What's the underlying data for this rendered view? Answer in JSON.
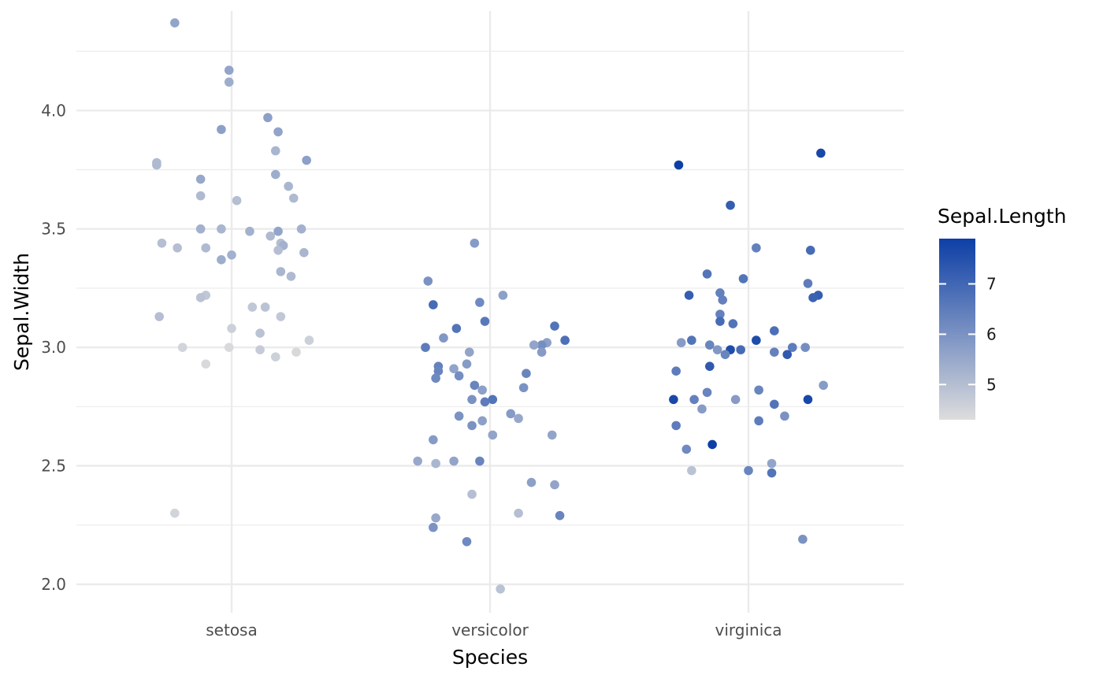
{
  "chart_data": {
    "type": "scatter",
    "title": "",
    "xlabel": "Species",
    "ylabel": "Sepal.Width",
    "categories": [
      "setosa",
      "versicolor",
      "virginica"
    ],
    "ylim": [
      1.88,
      4.42
    ],
    "y_ticks": [
      "2.0",
      "2.5",
      "3.0",
      "3.5",
      "4.0"
    ],
    "grid": true,
    "color_scale": {
      "title": "Sepal.Length",
      "min": 4.3,
      "max": 7.9,
      "low_color": "#dddddd",
      "high_color": "#0d3fa6",
      "ticks": [
        "5",
        "6",
        "7"
      ],
      "legend_position": "right"
    },
    "series": [
      {
        "name": "setosa",
        "points": [
          {
            "jitter": -0.22,
            "y": 4.37,
            "c": 5.6
          },
          {
            "jitter": -0.01,
            "y": 4.17,
            "c": 5.6
          },
          {
            "jitter": -0.01,
            "y": 4.12,
            "c": 5.4
          },
          {
            "jitter": 0.14,
            "y": 3.97,
            "c": 5.7
          },
          {
            "jitter": -0.04,
            "y": 3.92,
            "c": 5.7
          },
          {
            "jitter": 0.18,
            "y": 3.91,
            "c": 5.6
          },
          {
            "jitter": 0.17,
            "y": 3.83,
            "c": 5.2
          },
          {
            "jitter": 0.29,
            "y": 3.79,
            "c": 5.7
          },
          {
            "jitter": -0.29,
            "y": 3.78,
            "c": 5.1
          },
          {
            "jitter": -0.29,
            "y": 3.77,
            "c": 5.1
          },
          {
            "jitter": 0.17,
            "y": 3.73,
            "c": 5.4
          },
          {
            "jitter": -0.12,
            "y": 3.71,
            "c": 5.5
          },
          {
            "jitter": 0.22,
            "y": 3.68,
            "c": 5.2
          },
          {
            "jitter": -0.12,
            "y": 3.64,
            "c": 5.1
          },
          {
            "jitter": 0.24,
            "y": 3.63,
            "c": 5.1
          },
          {
            "jitter": 0.02,
            "y": 3.62,
            "c": 5.0
          },
          {
            "jitter": -0.12,
            "y": 3.5,
            "c": 5.3
          },
          {
            "jitter": -0.04,
            "y": 3.5,
            "c": 5.2
          },
          {
            "jitter": 0.27,
            "y": 3.5,
            "c": 5.3
          },
          {
            "jitter": 0.18,
            "y": 3.49,
            "c": 5.6
          },
          {
            "jitter": 0.07,
            "y": 3.49,
            "c": 5.3
          },
          {
            "jitter": 0.15,
            "y": 3.47,
            "c": 5.1
          },
          {
            "jitter": -0.27,
            "y": 3.44,
            "c": 5.0
          },
          {
            "jitter": 0.19,
            "y": 3.44,
            "c": 5.0
          },
          {
            "jitter": 0.2,
            "y": 3.43,
            "c": 5.3
          },
          {
            "jitter": -0.21,
            "y": 3.42,
            "c": 5.0
          },
          {
            "jitter": -0.1,
            "y": 3.42,
            "c": 5.1
          },
          {
            "jitter": 0.18,
            "y": 3.41,
            "c": 5.0
          },
          {
            "jitter": 0.28,
            "y": 3.4,
            "c": 5.2
          },
          {
            "jitter": 0.0,
            "y": 3.39,
            "c": 5.3
          },
          {
            "jitter": -0.04,
            "y": 3.37,
            "c": 5.4
          },
          {
            "jitter": 0.19,
            "y": 3.32,
            "c": 5.2
          },
          {
            "jitter": 0.23,
            "y": 3.3,
            "c": 5.1
          },
          {
            "jitter": -0.1,
            "y": 3.22,
            "c": 4.8
          },
          {
            "jitter": -0.12,
            "y": 3.21,
            "c": 4.9
          },
          {
            "jitter": 0.08,
            "y": 3.17,
            "c": 4.8
          },
          {
            "jitter": 0.13,
            "y": 3.17,
            "c": 4.9
          },
          {
            "jitter": -0.28,
            "y": 3.13,
            "c": 5.0
          },
          {
            "jitter": 0.19,
            "y": 3.13,
            "c": 4.8
          },
          {
            "jitter": 0.0,
            "y": 3.08,
            "c": 4.6
          },
          {
            "jitter": 0.11,
            "y": 3.06,
            "c": 4.9
          },
          {
            "jitter": 0.3,
            "y": 3.03,
            "c": 4.6
          },
          {
            "jitter": -0.19,
            "y": 3.0,
            "c": 4.5
          },
          {
            "jitter": -0.01,
            "y": 3.0,
            "c": 4.4
          },
          {
            "jitter": 0.11,
            "y": 2.99,
            "c": 4.7
          },
          {
            "jitter": 0.25,
            "y": 2.98,
            "c": 4.4
          },
          {
            "jitter": 0.17,
            "y": 2.96,
            "c": 4.6
          },
          {
            "jitter": -0.1,
            "y": 2.93,
            "c": 4.4
          },
          {
            "jitter": -0.22,
            "y": 2.3,
            "c": 4.5
          }
        ]
      },
      {
        "name": "versicolor",
        "points": [
          {
            "jitter": -0.06,
            "y": 3.44,
            "c": 5.8
          },
          {
            "jitter": -0.24,
            "y": 3.28,
            "c": 6.0
          },
          {
            "jitter": 0.05,
            "y": 3.22,
            "c": 5.7
          },
          {
            "jitter": -0.04,
            "y": 3.19,
            "c": 6.2
          },
          {
            "jitter": -0.22,
            "y": 3.18,
            "c": 6.9
          },
          {
            "jitter": -0.02,
            "y": 3.11,
            "c": 6.6
          },
          {
            "jitter": 0.25,
            "y": 3.09,
            "c": 6.7
          },
          {
            "jitter": -0.13,
            "y": 3.08,
            "c": 6.7
          },
          {
            "jitter": -0.18,
            "y": 3.04,
            "c": 5.9
          },
          {
            "jitter": 0.29,
            "y": 3.03,
            "c": 6.8
          },
          {
            "jitter": 0.22,
            "y": 3.02,
            "c": 5.7
          },
          {
            "jitter": 0.2,
            "y": 3.01,
            "c": 6.1
          },
          {
            "jitter": 0.17,
            "y": 3.01,
            "c": 5.6
          },
          {
            "jitter": -0.25,
            "y": 3.0,
            "c": 6.5
          },
          {
            "jitter": -0.08,
            "y": 2.98,
            "c": 5.6
          },
          {
            "jitter": 0.2,
            "y": 2.98,
            "c": 5.8
          },
          {
            "jitter": -0.2,
            "y": 2.92,
            "c": 6.4
          },
          {
            "jitter": -0.09,
            "y": 2.93,
            "c": 5.8
          },
          {
            "jitter": -0.14,
            "y": 2.91,
            "c": 5.6
          },
          {
            "jitter": -0.2,
            "y": 2.9,
            "c": 6.3
          },
          {
            "jitter": 0.14,
            "y": 2.89,
            "c": 6.3
          },
          {
            "jitter": -0.12,
            "y": 2.88,
            "c": 6.1
          },
          {
            "jitter": -0.21,
            "y": 2.87,
            "c": 6.2
          },
          {
            "jitter": -0.06,
            "y": 2.84,
            "c": 6.3
          },
          {
            "jitter": 0.13,
            "y": 2.83,
            "c": 6.0
          },
          {
            "jitter": -0.03,
            "y": 2.82,
            "c": 5.7
          },
          {
            "jitter": -0.07,
            "y": 2.78,
            "c": 6.0
          },
          {
            "jitter": 0.01,
            "y": 2.78,
            "c": 6.7
          },
          {
            "jitter": -0.02,
            "y": 2.77,
            "c": 6.5
          },
          {
            "jitter": 0.08,
            "y": 2.72,
            "c": 5.8
          },
          {
            "jitter": -0.12,
            "y": 2.71,
            "c": 6.0
          },
          {
            "jitter": 0.11,
            "y": 2.7,
            "c": 5.5
          },
          {
            "jitter": -0.03,
            "y": 2.69,
            "c": 5.7
          },
          {
            "jitter": -0.07,
            "y": 2.67,
            "c": 6.0
          },
          {
            "jitter": 0.01,
            "y": 2.63,
            "c": 5.6
          },
          {
            "jitter": 0.24,
            "y": 2.63,
            "c": 5.6
          },
          {
            "jitter": -0.22,
            "y": 2.61,
            "c": 5.8
          },
          {
            "jitter": -0.28,
            "y": 2.52,
            "c": 5.5
          },
          {
            "jitter": -0.14,
            "y": 2.52,
            "c": 5.6
          },
          {
            "jitter": -0.04,
            "y": 2.52,
            "c": 6.3
          },
          {
            "jitter": -0.21,
            "y": 2.51,
            "c": 5.2
          },
          {
            "jitter": 0.16,
            "y": 2.43,
            "c": 5.7
          },
          {
            "jitter": 0.25,
            "y": 2.42,
            "c": 5.6
          },
          {
            "jitter": -0.07,
            "y": 2.38,
            "c": 5.0
          },
          {
            "jitter": 0.11,
            "y": 2.3,
            "c": 5.0
          },
          {
            "jitter": 0.27,
            "y": 2.29,
            "c": 6.3
          },
          {
            "jitter": -0.21,
            "y": 2.28,
            "c": 5.5
          },
          {
            "jitter": -0.22,
            "y": 2.24,
            "c": 6.0
          },
          {
            "jitter": -0.09,
            "y": 2.18,
            "c": 6.2
          },
          {
            "jitter": 0.04,
            "y": 1.98,
            "c": 4.9
          }
        ]
      },
      {
        "name": "virginica",
        "points": [
          {
            "jitter": 0.28,
            "y": 3.82,
            "c": 7.7
          },
          {
            "jitter": -0.27,
            "y": 3.77,
            "c": 7.9
          },
          {
            "jitter": -0.07,
            "y": 3.6,
            "c": 7.2
          },
          {
            "jitter": 0.03,
            "y": 3.42,
            "c": 6.4
          },
          {
            "jitter": 0.24,
            "y": 3.41,
            "c": 6.9
          },
          {
            "jitter": -0.16,
            "y": 3.31,
            "c": 6.7
          },
          {
            "jitter": -0.02,
            "y": 3.29,
            "c": 6.7
          },
          {
            "jitter": 0.23,
            "y": 3.27,
            "c": 6.5
          },
          {
            "jitter": -0.11,
            "y": 3.23,
            "c": 6.4
          },
          {
            "jitter": -0.23,
            "y": 3.22,
            "c": 7.2
          },
          {
            "jitter": 0.27,
            "y": 3.22,
            "c": 7.2
          },
          {
            "jitter": 0.25,
            "y": 3.21,
            "c": 7.1
          },
          {
            "jitter": -0.1,
            "y": 3.2,
            "c": 6.4
          },
          {
            "jitter": -0.11,
            "y": 3.14,
            "c": 6.4
          },
          {
            "jitter": -0.11,
            "y": 3.11,
            "c": 6.9
          },
          {
            "jitter": -0.06,
            "y": 3.1,
            "c": 6.7
          },
          {
            "jitter": 0.1,
            "y": 3.07,
            "c": 6.8
          },
          {
            "jitter": 0.03,
            "y": 3.03,
            "c": 7.6
          },
          {
            "jitter": -0.22,
            "y": 3.03,
            "c": 6.7
          },
          {
            "jitter": -0.26,
            "y": 3.02,
            "c": 5.8
          },
          {
            "jitter": -0.15,
            "y": 3.01,
            "c": 6.3
          },
          {
            "jitter": 0.17,
            "y": 3.0,
            "c": 6.5
          },
          {
            "jitter": 0.22,
            "y": 3.0,
            "c": 6.1
          },
          {
            "jitter": -0.07,
            "y": 2.99,
            "c": 7.6
          },
          {
            "jitter": -0.03,
            "y": 2.99,
            "c": 6.9
          },
          {
            "jitter": -0.12,
            "y": 2.99,
            "c": 5.9
          },
          {
            "jitter": 0.1,
            "y": 2.98,
            "c": 6.4
          },
          {
            "jitter": -0.09,
            "y": 2.97,
            "c": 6.3
          },
          {
            "jitter": 0.15,
            "y": 2.97,
            "c": 7.3
          },
          {
            "jitter": -0.15,
            "y": 2.92,
            "c": 7.3
          },
          {
            "jitter": -0.28,
            "y": 2.9,
            "c": 6.5
          },
          {
            "jitter": 0.29,
            "y": 2.84,
            "c": 5.8
          },
          {
            "jitter": 0.04,
            "y": 2.82,
            "c": 6.3
          },
          {
            "jitter": -0.16,
            "y": 2.81,
            "c": 6.3
          },
          {
            "jitter": -0.21,
            "y": 2.78,
            "c": 6.4
          },
          {
            "jitter": -0.05,
            "y": 2.78,
            "c": 5.8
          },
          {
            "jitter": -0.29,
            "y": 2.78,
            "c": 7.7
          },
          {
            "jitter": 0.23,
            "y": 2.78,
            "c": 7.7
          },
          {
            "jitter": 0.1,
            "y": 2.76,
            "c": 6.7
          },
          {
            "jitter": -0.18,
            "y": 2.74,
            "c": 5.8
          },
          {
            "jitter": 0.14,
            "y": 2.71,
            "c": 6.0
          },
          {
            "jitter": 0.04,
            "y": 2.69,
            "c": 6.5
          },
          {
            "jitter": -0.28,
            "y": 2.67,
            "c": 6.5
          },
          {
            "jitter": -0.14,
            "y": 2.59,
            "c": 7.9
          },
          {
            "jitter": -0.24,
            "y": 2.57,
            "c": 6.2
          },
          {
            "jitter": 0.09,
            "y": 2.51,
            "c": 5.6
          },
          {
            "jitter": 0.0,
            "y": 2.48,
            "c": 6.3
          },
          {
            "jitter": -0.22,
            "y": 2.48,
            "c": 4.9
          },
          {
            "jitter": 0.09,
            "y": 2.47,
            "c": 6.7
          },
          {
            "jitter": 0.21,
            "y": 2.19,
            "c": 6.0
          }
        ]
      }
    ]
  }
}
